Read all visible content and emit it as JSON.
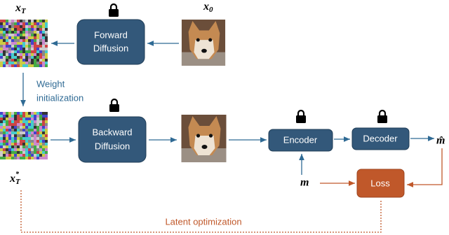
{
  "x_T": {
    "base": "x",
    "sub": "T"
  },
  "x_0": {
    "base": "x",
    "sub": "0"
  },
  "x_T_star": {
    "base": "x",
    "sub": "T",
    "sup": "*"
  },
  "forward_diffusion": [
    "Forward",
    "Diffusion"
  ],
  "weight_initialization": [
    "Weight",
    "initialization"
  ],
  "backward_diffusion": [
    "Backward",
    "Diffusion"
  ],
  "encoder": "Encoder",
  "decoder": "Decoder",
  "m_hat": "m̂",
  "m": "m",
  "loss": "Loss",
  "latent_optimization": "Latent optimization"
}
